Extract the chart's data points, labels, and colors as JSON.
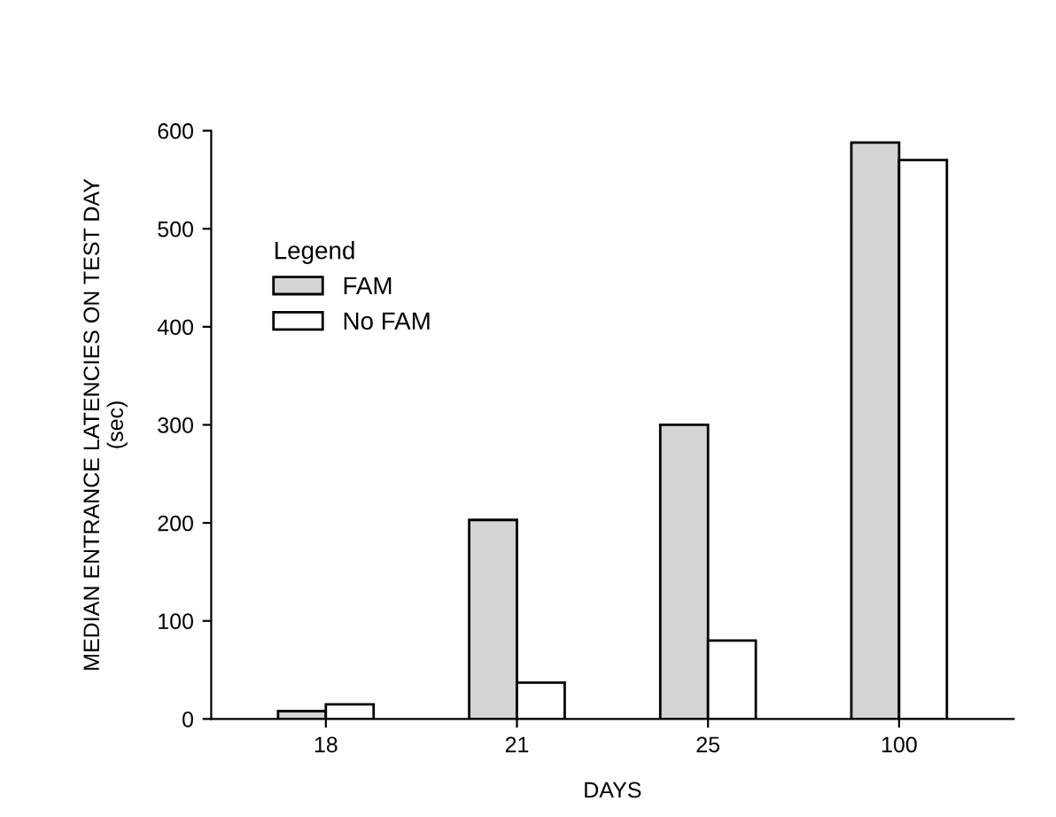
{
  "chart_data": {
    "type": "bar",
    "xlabel": "DAYS",
    "ylabel": "MEDIAN ENTRANCE LATENCIES ON TEST DAY\n(sec)",
    "legend_title": "Legend",
    "categories": [
      "18",
      "21",
      "25",
      "100"
    ],
    "series": [
      {
        "name": "FAM",
        "color": "#d4d4d4",
        "values": [
          8,
          203,
          300,
          588
        ]
      },
      {
        "name": "No FAM",
        "color": "#ffffff",
        "values": [
          15,
          37,
          80,
          570
        ]
      }
    ],
    "ylim": [
      0,
      600
    ],
    "yticks": [
      0,
      100,
      200,
      300,
      400,
      500,
      600
    ],
    "grid": false,
    "legend": "top left"
  }
}
